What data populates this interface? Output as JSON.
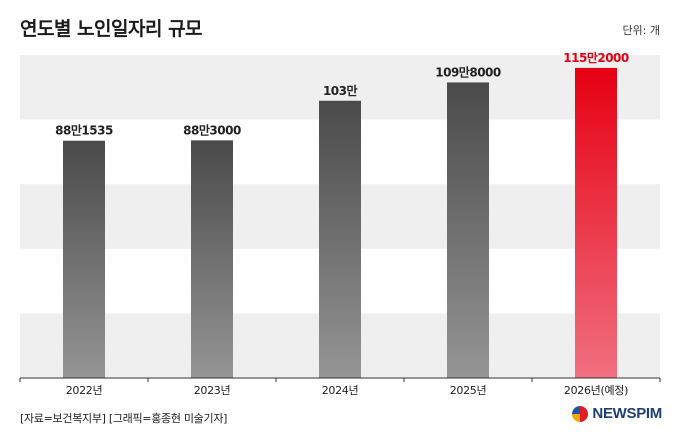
{
  "header": {
    "title": "연도별 노인일자리 규모",
    "unit": "단위: 개"
  },
  "footer": {
    "source": "[자료=보건복지부] [그래픽=홍종현 미술기자]",
    "logo_text": "NEWSPIM"
  },
  "colors": {
    "gray_top": "#4a4a4a",
    "gray_bottom": "#959595",
    "highlight_top": "#e60012",
    "highlight_bottom": "#f07080",
    "band": "#efefef"
  },
  "chart_data": {
    "type": "bar",
    "categories": [
      "2022년",
      "2023년",
      "2024년",
      "2025년",
      "2026년(예정)"
    ],
    "values": [
      881535,
      883000,
      1030000,
      1098000,
      1152000
    ],
    "data_labels": [
      "88만1535",
      "88만3000",
      "103만",
      "109만8000",
      "115만2000"
    ],
    "highlight_index": 4,
    "ylim": [
      0,
      1200000
    ],
    "grid": "alternating horizontal bands",
    "legend": "none"
  }
}
